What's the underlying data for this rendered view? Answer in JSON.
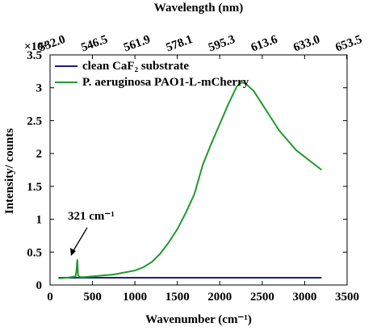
{
  "chart_data": {
    "type": "line",
    "top_axis_title": "Wavelength (nm)",
    "xlabel": "Wavenumber (cm⁻¹)",
    "ylabel": "Intensity/ counts",
    "y_multiplier": "×10⁴",
    "annotation": "321 cm⁻¹",
    "x": [
      100,
      200,
      300,
      310,
      321,
      330,
      350,
      400,
      500,
      750,
      1000,
      1100,
      1200,
      1300,
      1400,
      1500,
      1600,
      1700,
      1800,
      1900,
      2000,
      2100,
      2200,
      2250,
      2300,
      2400,
      2500,
      2600,
      2700,
      2800,
      2900,
      3000,
      3100,
      3200
    ],
    "series": [
      {
        "name": "clean CaF₂ substrate",
        "color": "#1c1c8a",
        "values": [
          0.11,
          0.11,
          0.11,
          0.11,
          0.11,
          0.11,
          0.11,
          0.11,
          0.11,
          0.11,
          0.11,
          0.11,
          0.11,
          0.11,
          0.11,
          0.11,
          0.11,
          0.11,
          0.11,
          0.11,
          0.11,
          0.11,
          0.11,
          0.11,
          0.11,
          0.11,
          0.11,
          0.11,
          0.11,
          0.11,
          0.11,
          0.11,
          0.11,
          0.11
        ]
      },
      {
        "name": "P. aeruginosa PAO1-L-mCherry",
        "color": "#1f9a2e",
        "values": [
          0.1,
          0.11,
          0.13,
          0.2,
          0.39,
          0.15,
          0.12,
          0.12,
          0.13,
          0.16,
          0.22,
          0.27,
          0.35,
          0.48,
          0.65,
          0.85,
          1.1,
          1.38,
          1.83,
          2.15,
          2.45,
          2.75,
          3.02,
          3.08,
          3.07,
          2.95,
          2.75,
          2.55,
          2.35,
          2.2,
          2.05,
          1.95,
          1.85,
          1.75
        ]
      }
    ],
    "xlim": [
      0,
      3500
    ],
    "xticks": [
      0,
      500,
      1000,
      1500,
      2000,
      2500,
      3000,
      3500
    ],
    "ylim": [
      0,
      3.5
    ],
    "yticks": [
      0,
      0.5,
      1,
      1.5,
      2,
      2.5,
      3,
      3.5
    ],
    "x2lim": [
      {
        "value": 532.0,
        "label": "532.0"
      },
      653.7
    ],
    "x2ticks": [
      {
        "value": 532.0,
        "label": "532.0"
      },
      546.5,
      561.9,
      578.1,
      595.3,
      613.6,
      {
        "value": 633.0,
        "label": "633.0"
      },
      653.5
    ],
    "legend": "upper left"
  }
}
